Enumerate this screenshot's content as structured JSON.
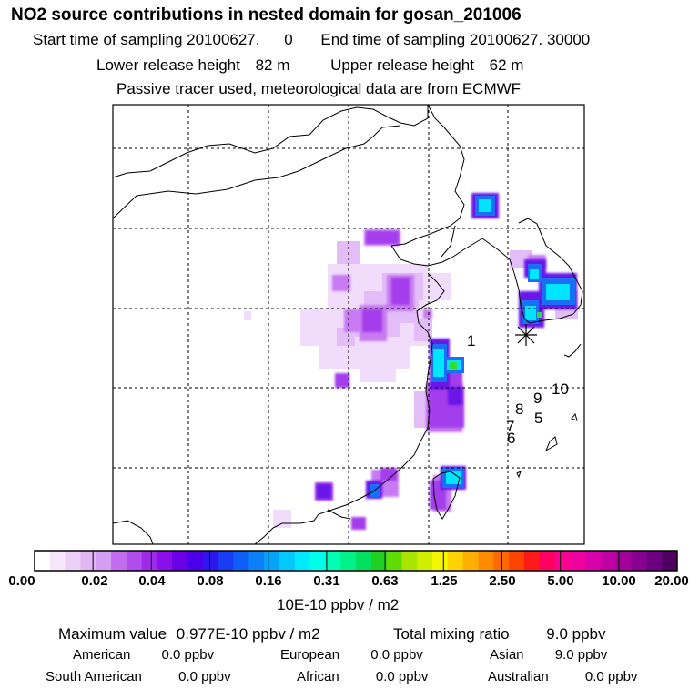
{
  "header": {
    "title": "NO2 source contributions in nested domain for gosan_201006",
    "start_label": "Start time of sampling 20100627.",
    "start_value": "0",
    "end_label": "End time of sampling 20100627. 30000",
    "lower_label": "Lower release height",
    "lower_value": "82 m",
    "upper_label": "Upper release height",
    "upper_value": "62 m",
    "note": "Passive tracer used, meteorological data are from ECMWF"
  },
  "map": {
    "site_labels": [
      "1",
      "10",
      "9",
      "8",
      "5",
      "7",
      "6"
    ],
    "receptor_marker": "asterisk"
  },
  "colorbar": {
    "ticks": [
      "0.00",
      "0.02",
      "0.04",
      "0.08",
      "0.16",
      "0.31",
      "0.63",
      "1.25",
      "2.50",
      "5.00",
      "10.00",
      "20.00"
    ],
    "colors": [
      "#ffffff",
      "#f5e6fb",
      "#edd0f8",
      "#e2b5f5",
      "#d49ef3",
      "#c26cf0",
      "#b04ded",
      "#9f2aea",
      "#8b0fe8",
      "#6a00e8",
      "#4b00ec",
      "#2f16f0",
      "#1a3cf5",
      "#0f5df7",
      "#0a80fa",
      "#06a3fb",
      "#03c8fc",
      "#00eaff",
      "#00ffe8",
      "#00ffb5",
      "#00f08a",
      "#00e060",
      "#20d020",
      "#60dd00",
      "#a8e600",
      "#d2ee00",
      "#f5f500",
      "#ffd200",
      "#ffaf00",
      "#ff8c00",
      "#ff6a00",
      "#ff4400",
      "#ff1a1a",
      "#ff0060",
      "#ff0090",
      "#f000a0",
      "#d800a8",
      "#c000a5",
      "#a4009b",
      "#880090",
      "#6c0080",
      "#4d0060"
    ],
    "units": "10E-10 ppbv / m2"
  },
  "stats": {
    "max_label": "Maximum value",
    "max_value": "0.977E-10 ppbv / m2",
    "total_label": "Total mixing ratio",
    "total_value": "9.0 ppbv",
    "regions": [
      {
        "name": "American",
        "value": "0.0 ppbv"
      },
      {
        "name": "European",
        "value": "0.0 ppbv"
      },
      {
        "name": "Asian",
        "value": "9.0 ppbv"
      },
      {
        "name": "South American",
        "value": "0.0 ppbv"
      },
      {
        "name": "African",
        "value": "0.0 ppbv"
      },
      {
        "name": "Australian",
        "value": "0.0 ppbv"
      }
    ]
  }
}
